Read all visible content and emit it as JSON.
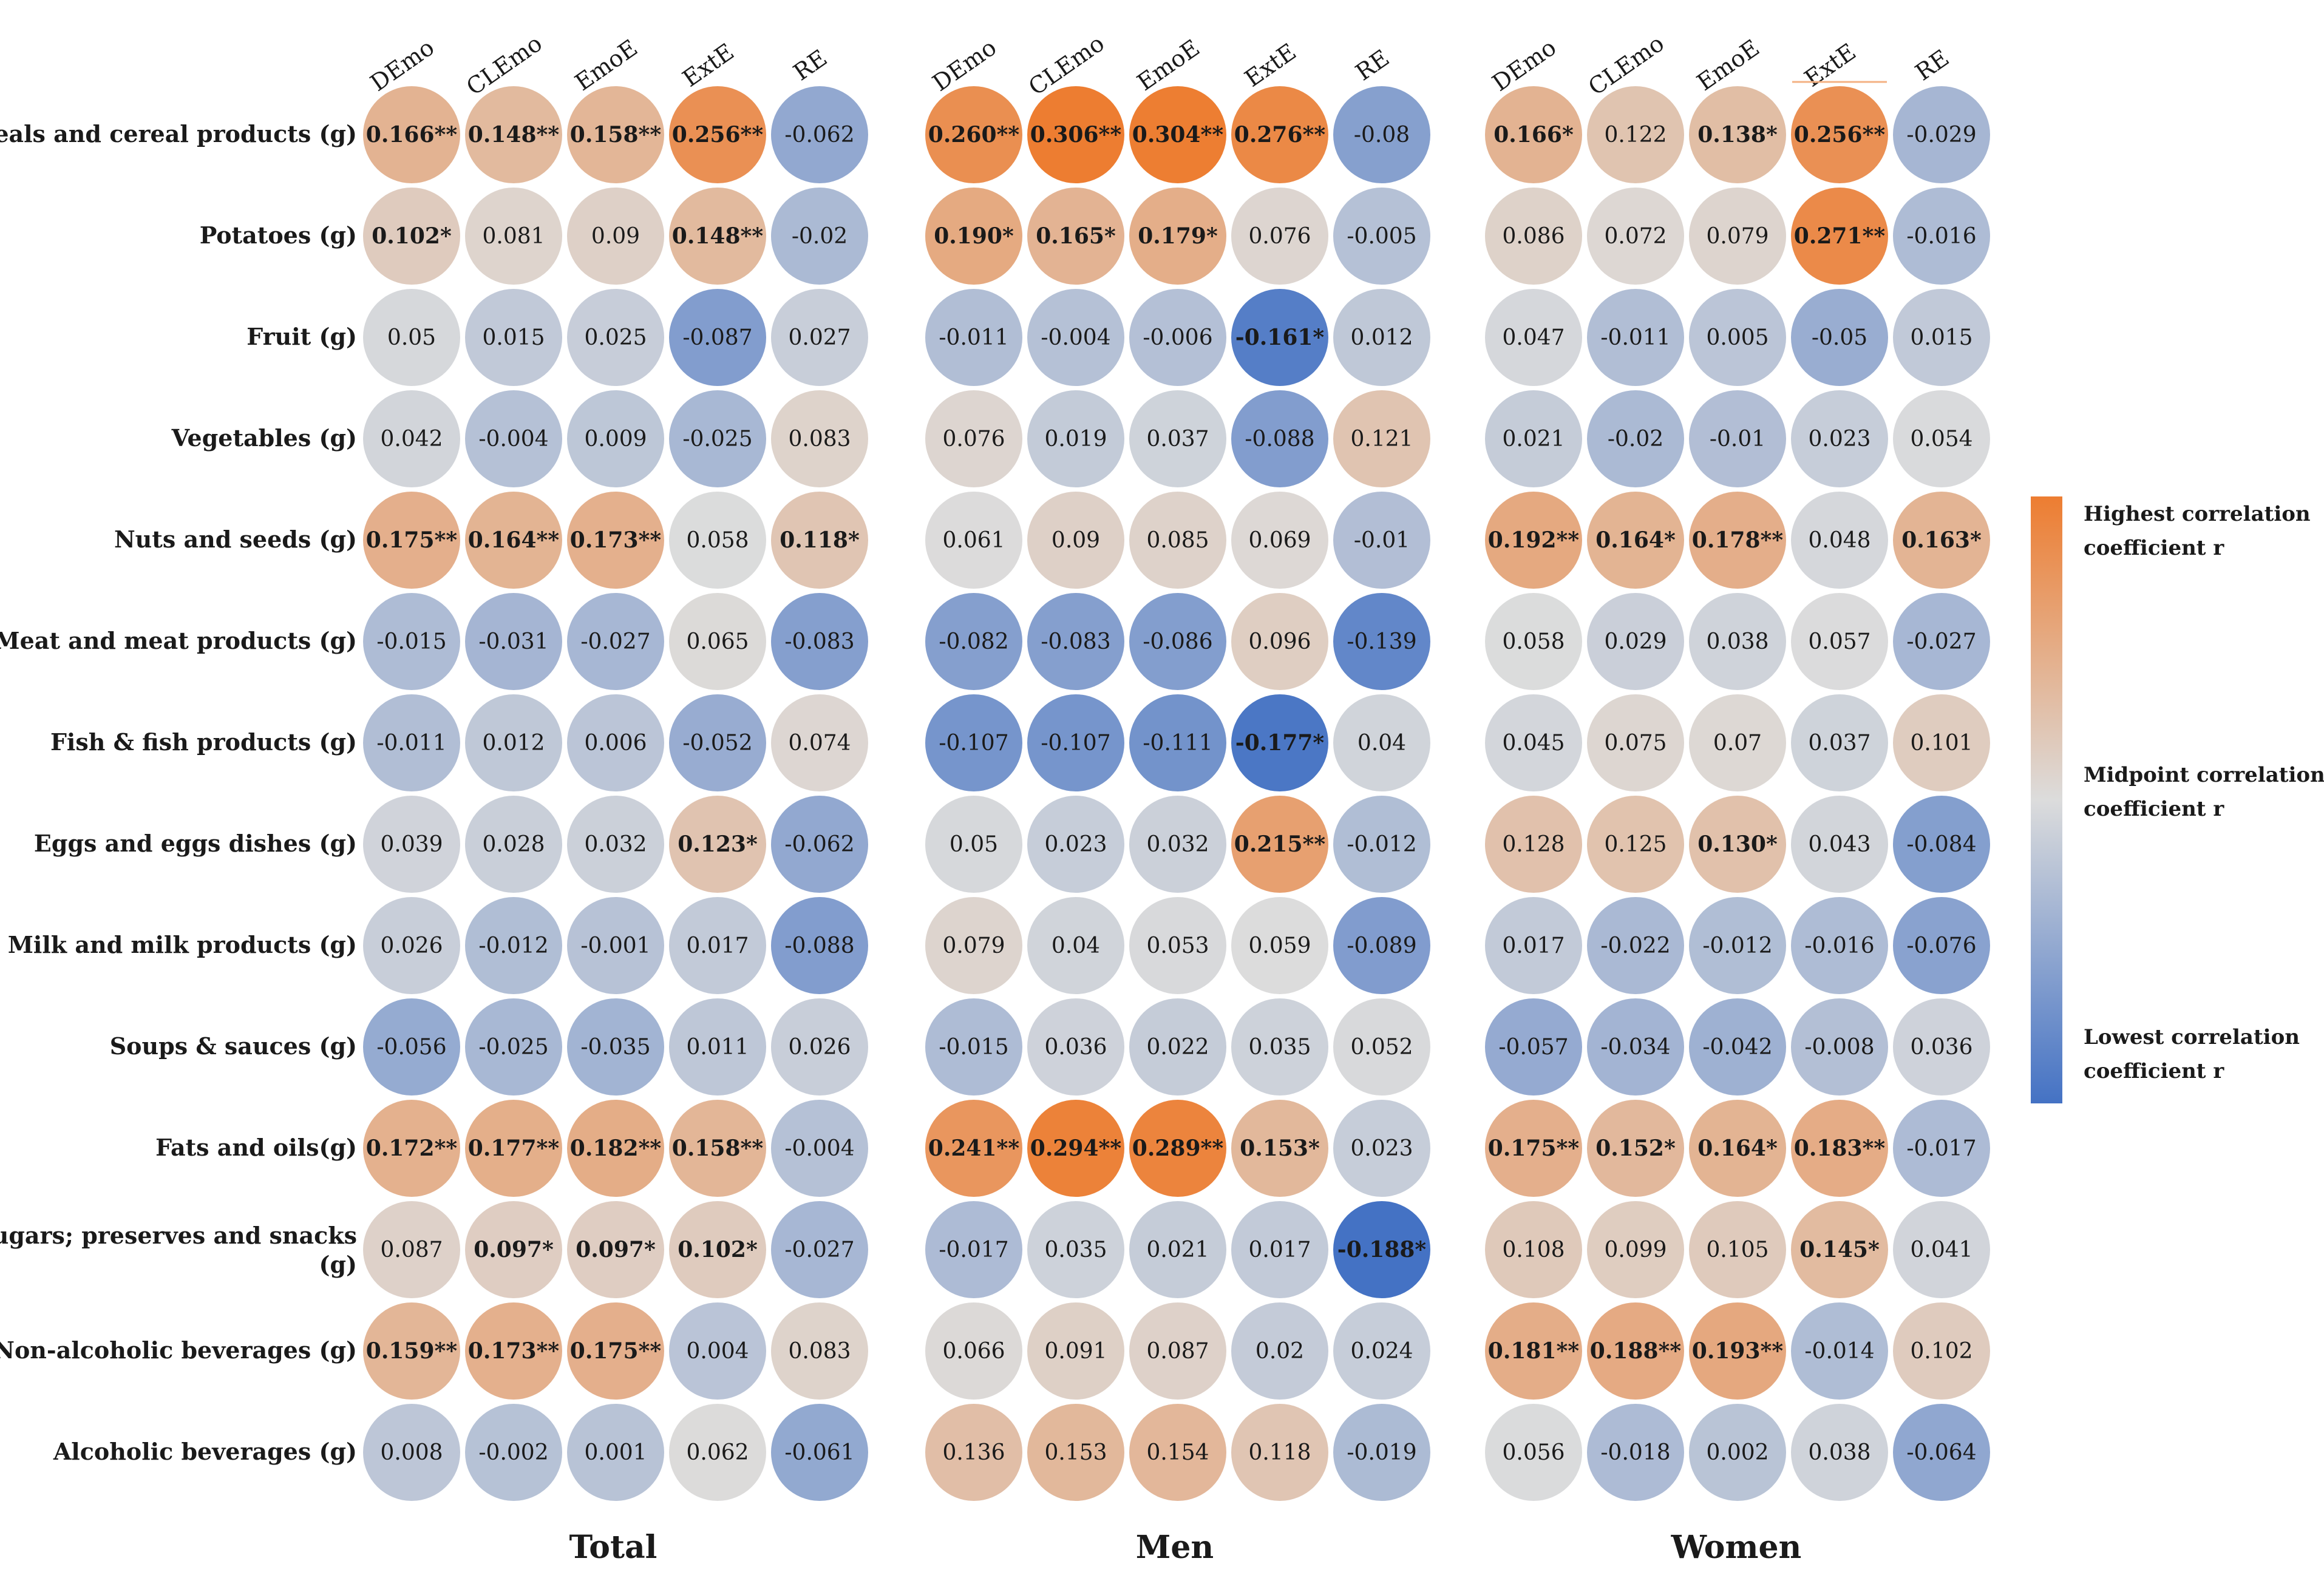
{
  "chart_data": {
    "type": "heatmap",
    "title": "",
    "columns": [
      "DEmo",
      "CLEmo",
      "EmoE",
      "ExtE",
      "RE"
    ],
    "rows": [
      "Cereals and cereal products (g)",
      "Potatoes (g)",
      "Fruit (g)",
      "Vegetables (g)",
      "Nuts and seeds (g)",
      "Meat and meat products (g)",
      "Fish & fish products (g)",
      "Eggs and eggs dishes (g)",
      "Milk and milk products (g)",
      "Soups & sauces (g)",
      "Fats and oils(g)",
      "Sugars; preserves and snacks (g)",
      "Non-alcoholic beverages (g)",
      "Alcoholic beverages (g)"
    ],
    "value_range": [
      -0.188,
      0.306
    ],
    "colors": {
      "high": "#ed7d31",
      "mid": "#dcdcdc",
      "low": "#4472c4"
    },
    "panels": [
      {
        "name": "Total",
        "values": [
          [
            0.166,
            0.148,
            0.158,
            0.256,
            -0.062
          ],
          [
            0.102,
            0.081,
            0.09,
            0.148,
            -0.02
          ],
          [
            0.05,
            0.015,
            0.025,
            -0.087,
            0.027
          ],
          [
            0.042,
            -0.004,
            0.009,
            -0.025,
            0.083
          ],
          [
            0.175,
            0.164,
            0.173,
            0.058,
            0.118
          ],
          [
            -0.015,
            -0.031,
            -0.027,
            0.065,
            -0.083
          ],
          [
            -0.011,
            0.012,
            0.006,
            -0.052,
            0.074
          ],
          [
            0.039,
            0.028,
            0.032,
            0.123,
            -0.062
          ],
          [
            0.026,
            -0.012,
            -0.001,
            0.017,
            -0.088
          ],
          [
            -0.056,
            -0.025,
            -0.035,
            0.011,
            0.026
          ],
          [
            0.172,
            0.177,
            0.182,
            0.158,
            -0.004
          ],
          [
            0.087,
            0.097,
            0.097,
            0.102,
            -0.027
          ],
          [
            0.159,
            0.173,
            0.175,
            0.004,
            0.083
          ],
          [
            0.008,
            -0.002,
            0.001,
            0.062,
            -0.061
          ]
        ],
        "labels": [
          [
            "0.166**",
            "0.148**",
            "0.158**",
            "0.256**",
            "-0.062"
          ],
          [
            "0.102*",
            "0.081",
            "0.09",
            "0.148**",
            "-0.02"
          ],
          [
            "0.05",
            "0.015",
            "0.025",
            "-0.087",
            "0.027"
          ],
          [
            "0.042",
            "-0.004",
            "0.009",
            "-0.025",
            "0.083"
          ],
          [
            "0.175**",
            "0.164**",
            "0.173**",
            "0.058",
            "0.118*"
          ],
          [
            "-0.015",
            "-0.031",
            "-0.027",
            "0.065",
            "-0.083"
          ],
          [
            "-0.011",
            "0.012",
            "0.006",
            "-0.052",
            "0.074"
          ],
          [
            "0.039",
            "0.028",
            "0.032",
            "0.123*",
            "-0.062"
          ],
          [
            "0.026",
            "-0.012",
            "-0.001",
            "0.017",
            "-0.088"
          ],
          [
            "-0.056",
            "-0.025",
            "-0.035",
            "0.011",
            "0.026"
          ],
          [
            "0.172**",
            "0.177**",
            "0.182**",
            "0.158**",
            "-0.004"
          ],
          [
            "0.087",
            "0.097*",
            "0.097*",
            "0.102*",
            "-0.027"
          ],
          [
            "0.159**",
            "0.173**",
            "0.175**",
            "0.004",
            "0.083"
          ],
          [
            "0.008",
            "-0.002",
            "0.001",
            "0.062",
            "-0.061"
          ]
        ]
      },
      {
        "name": "Men",
        "values": [
          [
            0.26,
            0.306,
            0.304,
            0.276,
            -0.08
          ],
          [
            0.19,
            0.165,
            0.179,
            0.076,
            -0.005
          ],
          [
            -0.011,
            -0.004,
            -0.006,
            -0.161,
            0.012
          ],
          [
            0.076,
            0.019,
            0.037,
            -0.088,
            0.121
          ],
          [
            0.061,
            0.09,
            0.085,
            0.069,
            -0.01
          ],
          [
            -0.082,
            -0.083,
            -0.086,
            0.096,
            -0.139
          ],
          [
            -0.107,
            -0.107,
            -0.111,
            -0.177,
            0.04
          ],
          [
            0.05,
            0.023,
            0.032,
            0.215,
            -0.012
          ],
          [
            0.079,
            0.04,
            0.053,
            0.059,
            -0.089
          ],
          [
            -0.015,
            0.036,
            0.022,
            0.035,
            0.052
          ],
          [
            0.241,
            0.294,
            0.289,
            0.153,
            0.023
          ],
          [
            -0.017,
            0.035,
            0.021,
            0.017,
            -0.188
          ],
          [
            0.066,
            0.091,
            0.087,
            0.02,
            0.024
          ],
          [
            0.136,
            0.153,
            0.154,
            0.118,
            -0.019
          ]
        ],
        "labels": [
          [
            "0.260**",
            "0.306**",
            "0.304**",
            "0.276**",
            "-0.08"
          ],
          [
            "0.190*",
            "0.165*",
            "0.179*",
            "0.076",
            "-0.005"
          ],
          [
            "-0.011",
            "-0.004",
            "-0.006",
            "-0.161*",
            "0.012"
          ],
          [
            "0.076",
            "0.019",
            "0.037",
            "-0.088",
            "0.121"
          ],
          [
            "0.061",
            "0.09",
            "0.085",
            "0.069",
            "-0.01"
          ],
          [
            "-0.082",
            "-0.083",
            "-0.086",
            "0.096",
            "-0.139"
          ],
          [
            "-0.107",
            "-0.107",
            "-0.111",
            "-0.177*",
            "0.04"
          ],
          [
            "0.05",
            "0.023",
            "0.032",
            "0.215**",
            "-0.012"
          ],
          [
            "0.079",
            "0.04",
            "0.053",
            "0.059",
            "-0.089"
          ],
          [
            "-0.015",
            "0.036",
            "0.022",
            "0.035",
            "0.052"
          ],
          [
            "0.241**",
            "0.294**",
            "0.289**",
            "0.153*",
            "0.023"
          ],
          [
            "-0.017",
            "0.035",
            "0.021",
            "0.017",
            "-0.188*"
          ],
          [
            "0.066",
            "0.091",
            "0.087",
            "0.02",
            "0.024"
          ],
          [
            "0.136",
            "0.153",
            "0.154",
            "0.118",
            "-0.019"
          ]
        ]
      },
      {
        "name": "Women",
        "values": [
          [
            0.166,
            0.122,
            0.138,
            0.256,
            -0.029
          ],
          [
            0.086,
            0.072,
            0.079,
            0.271,
            -0.016
          ],
          [
            0.047,
            -0.011,
            0.005,
            -0.05,
            0.015
          ],
          [
            0.021,
            -0.02,
            -0.01,
            0.023,
            0.054
          ],
          [
            0.192,
            0.164,
            0.178,
            0.048,
            0.163
          ],
          [
            0.058,
            0.029,
            0.038,
            0.057,
            -0.027
          ],
          [
            0.045,
            0.075,
            0.07,
            0.037,
            0.101
          ],
          [
            0.128,
            0.125,
            0.13,
            0.043,
            -0.084
          ],
          [
            0.017,
            -0.022,
            -0.012,
            -0.016,
            -0.076
          ],
          [
            -0.057,
            -0.034,
            -0.042,
            -0.008,
            0.036
          ],
          [
            0.175,
            0.152,
            0.164,
            0.183,
            -0.017
          ],
          [
            0.108,
            0.099,
            0.105,
            0.145,
            0.041
          ],
          [
            0.181,
            0.188,
            0.193,
            -0.014,
            0.102
          ],
          [
            0.056,
            -0.018,
            0.002,
            0.038,
            -0.064
          ]
        ],
        "labels": [
          [
            "0.166*",
            "0.122",
            "0.138*",
            "0.256**",
            "-0.029"
          ],
          [
            "0.086",
            "0.072",
            "0.079",
            "0.271**",
            "-0.016"
          ],
          [
            "0.047",
            "-0.011",
            "0.005",
            "-0.05",
            "0.015"
          ],
          [
            "0.021",
            "-0.02",
            "-0.01",
            "0.023",
            "0.054"
          ],
          [
            "0.192**",
            "0.164*",
            "0.178**",
            "0.048",
            "0.163*"
          ],
          [
            "0.058",
            "0.029",
            "0.038",
            "0.057",
            "-0.027"
          ],
          [
            "0.045",
            "0.075",
            "0.07",
            "0.037",
            "0.101"
          ],
          [
            "0.128",
            "0.125",
            "0.130*",
            "0.043",
            "-0.084"
          ],
          [
            "0.017",
            "-0.022",
            "-0.012",
            "-0.016",
            "-0.076"
          ],
          [
            "-0.057",
            "-0.034",
            "-0.042",
            "-0.008",
            "0.036"
          ],
          [
            "0.175**",
            "0.152*",
            "0.164*",
            "0.183**",
            "-0.017"
          ],
          [
            "0.108",
            "0.099",
            "0.105",
            "0.145*",
            "0.041"
          ],
          [
            "0.181**",
            "0.188**",
            "0.193**",
            "-0.014",
            "0.102"
          ],
          [
            "0.056",
            "-0.018",
            "0.002",
            "0.038",
            "-0.064"
          ]
        ]
      }
    ],
    "legend": {
      "high_label": "Highest correlation coefficient r",
      "mid_label": "Midpoint correlation coefficient r",
      "low_label": "Lowest correlation coefficient r"
    }
  }
}
